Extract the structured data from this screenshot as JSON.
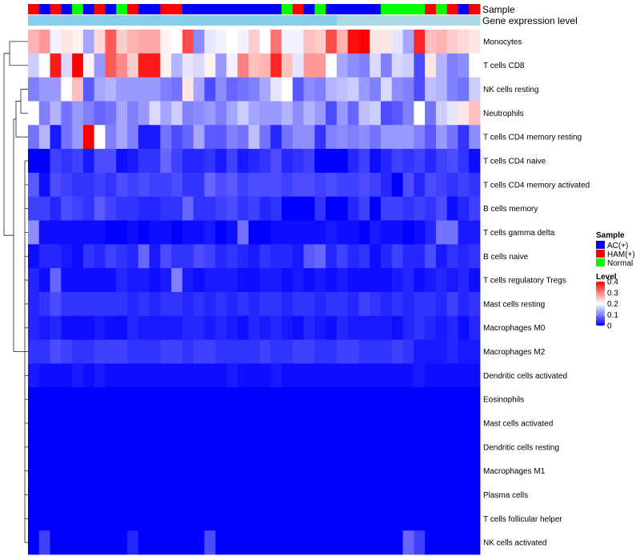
{
  "chart_data": {
    "type": "heatmap",
    "annotation_rows": [
      "Sample",
      "Gene expression level"
    ],
    "row_labels": [
      "Monocytes",
      "T cells CD8",
      "NK cells resting",
      "Neutrophils",
      "T cells CD4 memory resting",
      "T cells CD4 naive",
      "T cells CD4 memory activated",
      "B cells memory",
      "T cells gamma delta",
      "B cells naive",
      "T cells regulatory  Tregs",
      "Mast cells resting",
      "Macrophages M0",
      "Macrophages M2",
      "Dendritic cells activated",
      "Eosinophils",
      "Mast cells activated",
      "Dendritic cells resting",
      "Macrophages M1",
      "Plasma cells",
      "T cells follicular helper",
      "NK cells activated"
    ],
    "sample_groups": [
      "HAM",
      "AC",
      "HAM",
      "AC",
      "Normal",
      "AC",
      "HAM",
      "AC",
      "Normal",
      "HAM",
      "AC",
      "AC",
      "HAM",
      "HAM",
      "AC",
      "AC",
      "AC",
      "AC",
      "AC",
      "AC",
      "AC",
      "AC",
      "AC",
      "Normal",
      "HAM",
      "AC",
      "Normal",
      "AC",
      "AC",
      "AC",
      "AC",
      "AC",
      "Normal",
      "Normal",
      "Normal",
      "Normal",
      "HAM",
      "Normal",
      "HAM",
      "AC",
      "HAM"
    ],
    "gene_expression_level_colors": [
      "#87ceeb",
      "#add8e6"
    ],
    "values": [
      [
        0.26,
        0.28,
        0.19,
        0.22,
        0.21,
        0.13,
        0.23,
        0.33,
        0.24,
        0.26,
        0.27,
        0.27,
        0.21,
        0.2,
        0.34,
        0.11,
        0.18,
        0.19,
        0.2,
        0.19,
        0.24,
        0.2,
        0.31,
        0.19,
        0.19,
        0.25,
        0.24,
        0.34,
        0.26,
        0.39,
        0.4,
        0.22,
        0.22,
        0.18,
        0.13,
        0.37,
        0.25,
        0.26,
        0.24,
        0.23,
        0.22
      ],
      [
        0.16,
        0.2,
        0.38,
        0.17,
        0.4,
        0.21,
        0.12,
        0.33,
        0.29,
        0.24,
        0.38,
        0.38,
        0.21,
        0.14,
        0.18,
        0.17,
        0.21,
        0.12,
        0.19,
        0.3,
        0.25,
        0.26,
        0.37,
        0.25,
        0.18,
        0.28,
        0.28,
        0.2,
        0.13,
        0.11,
        0.1,
        0.17,
        0.1,
        0.17,
        0.16,
        0.06,
        0.22,
        0.14,
        0.1,
        0.11,
        0.2
      ],
      [
        0.1,
        0.12,
        0.12,
        0.2,
        0.25,
        0.07,
        0.13,
        0.14,
        0.12,
        0.12,
        0.12,
        0.12,
        0.1,
        0.09,
        0.22,
        0.13,
        0.06,
        0.11,
        0.08,
        0.09,
        0.1,
        0.13,
        0.18,
        0.2,
        0.07,
        0.11,
        0.1,
        0.14,
        0.15,
        0.16,
        0.12,
        0.1,
        0.17,
        0.11,
        0.1,
        0.06,
        0.15,
        0.14,
        0.1,
        0.09,
        0.16
      ],
      [
        0.2,
        0.1,
        0.14,
        0.09,
        0.12,
        0.1,
        0.08,
        0.09,
        0.13,
        0.1,
        0.12,
        0.17,
        0.13,
        0.16,
        0.1,
        0.11,
        0.12,
        0.1,
        0.13,
        0.16,
        0.13,
        0.12,
        0.12,
        0.14,
        0.11,
        0.14,
        0.12,
        0.06,
        0.12,
        0.08,
        0.15,
        0.16,
        0.06,
        0.07,
        0.1,
        0.2,
        0.09,
        0.16,
        0.18,
        0.22,
        0.25
      ],
      [
        0.09,
        0.14,
        0.02,
        0.09,
        0.12,
        0.4,
        0.2,
        0.1,
        0.13,
        0.1,
        0.02,
        0.02,
        0.09,
        0.06,
        0.08,
        0.13,
        0.07,
        0.07,
        0.1,
        0.09,
        0.15,
        0.09,
        0.03,
        0.09,
        0.11,
        0.11,
        0.04,
        0.1,
        0.11,
        0.1,
        0.11,
        0.09,
        0.12,
        0.12,
        0.12,
        0.1,
        0.07,
        0.12,
        0.09,
        0.04,
        0.11
      ],
      [
        0,
        0,
        0.05,
        0.04,
        0.05,
        0.02,
        0.06,
        0.06,
        0.01,
        0.02,
        0.04,
        0.04,
        0.08,
        0.05,
        0.03,
        0.03,
        0.04,
        0.02,
        0.05,
        0.02,
        0.03,
        0.04,
        0.06,
        0.03,
        0.04,
        0.05,
        0,
        0,
        0,
        0.03,
        0.05,
        0.01,
        0.03,
        0.05,
        0.04,
        0.05,
        0.03,
        0.05,
        0.06,
        0.04,
        0.01
      ],
      [
        0.07,
        0.01,
        0.06,
        0.05,
        0.04,
        0.04,
        0.05,
        0.04,
        0.06,
        0.05,
        0.06,
        0.05,
        0.05,
        0.06,
        0.04,
        0.04,
        0.08,
        0.06,
        0.07,
        0.05,
        0.06,
        0.06,
        0.06,
        0.05,
        0.06,
        0.06,
        0.05,
        0.06,
        0.05,
        0.05,
        0.06,
        0.05,
        0.03,
        0,
        0.06,
        0.03,
        0.06,
        0.05,
        0.04,
        0.05,
        0.04
      ],
      [
        0.05,
        0.05,
        0.03,
        0.06,
        0.05,
        0.04,
        0.07,
        0.05,
        0.04,
        0.04,
        0.03,
        0.03,
        0.04,
        0.04,
        0.08,
        0.04,
        0.04,
        0.05,
        0.06,
        0.04,
        0.05,
        0.03,
        0.04,
        0,
        0,
        0,
        0.04,
        0,
        0,
        0.03,
        0.05,
        0,
        0.05,
        0.05,
        0.04,
        0.05,
        0.04,
        0.06,
        0.01,
        0.03,
        0.05
      ],
      [
        0.11,
        0.01,
        0.01,
        0.01,
        0.01,
        0.01,
        0.01,
        0,
        0,
        0.01,
        0,
        0.01,
        0.01,
        0,
        0.01,
        0.01,
        0.02,
        0,
        0.01,
        0.09,
        0,
        0,
        0.01,
        0.01,
        0.01,
        0.01,
        0.01,
        0.02,
        0.01,
        0.01,
        0,
        0.02,
        0.01,
        0.01,
        0,
        0.01,
        0.03,
        0.09,
        0.09,
        0.02,
        0.02
      ],
      [
        0.01,
        0.03,
        0.03,
        0.02,
        0.01,
        0.04,
        0.03,
        0.05,
        0.04,
        0.03,
        0.08,
        0.02,
        0.06,
        0.04,
        0.04,
        0.06,
        0.05,
        0.03,
        0.04,
        0.03,
        0.02,
        0.04,
        0.03,
        0.03,
        0.02,
        0.07,
        0.08,
        0.03,
        0.05,
        0.03,
        0.04,
        0.01,
        0.03,
        0.05,
        0.03,
        0.03,
        0.06,
        0.02,
        0.04,
        0.03,
        0.04
      ],
      [
        0.03,
        0.01,
        0.08,
        0.01,
        0.01,
        0.01,
        0.01,
        0.01,
        0.03,
        0.02,
        0.02,
        0.01,
        0.02,
        0.1,
        0.02,
        0.01,
        0.02,
        0.02,
        0.02,
        0.01,
        0.01,
        0.02,
        0.02,
        0.01,
        0.02,
        0.01,
        0.02,
        0.01,
        0.02,
        0.01,
        0.01,
        0.01,
        0.01,
        0.02,
        0.03,
        0.01,
        0.02,
        0.03,
        0.02,
        0.03,
        0.01
      ],
      [
        0.03,
        0.04,
        0.06,
        0.04,
        0.04,
        0.04,
        0.04,
        0.04,
        0.04,
        0.03,
        0.04,
        0.03,
        0.04,
        0.04,
        0.03,
        0.04,
        0.03,
        0.04,
        0.03,
        0.04,
        0.03,
        0.04,
        0.04,
        0.03,
        0.04,
        0.04,
        0.03,
        0.04,
        0.04,
        0.03,
        0.05,
        0.04,
        0.03,
        0.04,
        0.03,
        0.04,
        0.04,
        0.03,
        0.05,
        0.03,
        0.04
      ],
      [
        0.03,
        0.02,
        0.03,
        0.01,
        0.01,
        0.01,
        0.02,
        0.01,
        0.01,
        0.03,
        0.02,
        0.02,
        0.02,
        0.02,
        0.03,
        0.03,
        0.02,
        0.03,
        0.02,
        0.01,
        0.03,
        0.02,
        0.03,
        0.02,
        0.01,
        0.03,
        0.02,
        0.01,
        0.03,
        0.02,
        0.02,
        0.02,
        0.02,
        0.01,
        0.03,
        0.04,
        0.03,
        0.02,
        0.03,
        0.01,
        0.03
      ],
      [
        0.04,
        0.04,
        0.06,
        0.05,
        0.04,
        0.04,
        0.05,
        0.05,
        0.05,
        0.04,
        0.04,
        0.04,
        0.05,
        0.05,
        0.04,
        0.05,
        0.05,
        0.04,
        0.04,
        0.04,
        0.04,
        0.05,
        0.04,
        0.04,
        0.05,
        0.05,
        0.04,
        0.04,
        0.05,
        0.05,
        0.04,
        0.04,
        0.04,
        0.05,
        0.04,
        0.02,
        0.02,
        0.02,
        0.03,
        0.02,
        0.02
      ],
      [
        0.02,
        0.01,
        0.01,
        0.01,
        0.02,
        0.01,
        0.02,
        0.01,
        0.01,
        0.01,
        0.01,
        0.01,
        0.01,
        0.01,
        0.01,
        0.01,
        0.01,
        0.01,
        0.02,
        0.01,
        0.01,
        0.01,
        0.02,
        0.01,
        0.01,
        0.01,
        0.01,
        0.01,
        0.01,
        0.01,
        0.01,
        0.01,
        0.01,
        0.01,
        0.01,
        0.02,
        0.01,
        0.01,
        0.01,
        0.01,
        0.01
      ],
      [
        0,
        0,
        0,
        0,
        0,
        0,
        0,
        0,
        0,
        0,
        0,
        0,
        0,
        0,
        0,
        0,
        0,
        0,
        0,
        0,
        0,
        0,
        0,
        0,
        0,
        0,
        0,
        0,
        0,
        0,
        0,
        0,
        0,
        0,
        0,
        0,
        0,
        0,
        0,
        0,
        0
      ],
      [
        0,
        0,
        0,
        0,
        0,
        0,
        0,
        0,
        0,
        0,
        0,
        0,
        0,
        0,
        0,
        0,
        0,
        0,
        0,
        0,
        0,
        0,
        0,
        0,
        0,
        0,
        0,
        0,
        0,
        0,
        0,
        0,
        0,
        0,
        0,
        0,
        0,
        0,
        0,
        0,
        0
      ],
      [
        0,
        0,
        0,
        0,
        0,
        0,
        0,
        0,
        0,
        0,
        0,
        0,
        0,
        0,
        0,
        0,
        0,
        0,
        0,
        0,
        0,
        0,
        0,
        0,
        0,
        0,
        0,
        0,
        0,
        0,
        0,
        0,
        0,
        0,
        0,
        0,
        0,
        0,
        0,
        0,
        0
      ],
      [
        0,
        0,
        0,
        0,
        0,
        0,
        0,
        0,
        0,
        0,
        0,
        0,
        0,
        0,
        0,
        0,
        0,
        0,
        0,
        0,
        0,
        0,
        0,
        0,
        0,
        0,
        0,
        0,
        0,
        0,
        0,
        0,
        0,
        0,
        0,
        0,
        0,
        0,
        0,
        0,
        0
      ],
      [
        0,
        0,
        0,
        0,
        0,
        0,
        0,
        0,
        0,
        0,
        0,
        0,
        0,
        0,
        0,
        0,
        0,
        0,
        0,
        0,
        0,
        0,
        0,
        0,
        0,
        0,
        0,
        0,
        0,
        0,
        0,
        0,
        0,
        0,
        0,
        0,
        0,
        0,
        0,
        0,
        0
      ],
      [
        0,
        0,
        0,
        0,
        0,
        0,
        0,
        0,
        0,
        0,
        0,
        0,
        0,
        0,
        0,
        0,
        0,
        0,
        0,
        0,
        0,
        0,
        0,
        0,
        0,
        0,
        0,
        0,
        0,
        0,
        0,
        0,
        0,
        0,
        0,
        0,
        0,
        0,
        0,
        0,
        0
      ],
      [
        0,
        0.05,
        0,
        0,
        0,
        0,
        0,
        0,
        0,
        0.03,
        0,
        0,
        0,
        0,
        0,
        0,
        0.06,
        0,
        0,
        0,
        0,
        0,
        0,
        0,
        0,
        0,
        0,
        0,
        0,
        0,
        0,
        0,
        0,
        0,
        0.08,
        0.05,
        0,
        0,
        0,
        0,
        0
      ]
    ],
    "color_scale": {
      "name": "Level",
      "min": 0,
      "max": 0.4,
      "ticks": [
        "0.4",
        "0.3",
        "0.2",
        "0.1",
        "0"
      ],
      "low_color": "#0000ff",
      "mid_color": "#ffffff",
      "high_color": "#ff0000",
      "mid_value": 0.2
    },
    "legend": {
      "title": "Sample",
      "entries": [
        {
          "label": "AC(+)",
          "color": "#0000ff"
        },
        {
          "label": "HAM(+)",
          "color": "#ff0000"
        },
        {
          "label": "Normal",
          "color": "#00ff00"
        }
      ],
      "placement": "right"
    },
    "group_colors": {
      "AC": "#0000ff",
      "HAM": "#ff0000",
      "Normal": "#00ff00"
    },
    "row_dendrogram": true
  }
}
